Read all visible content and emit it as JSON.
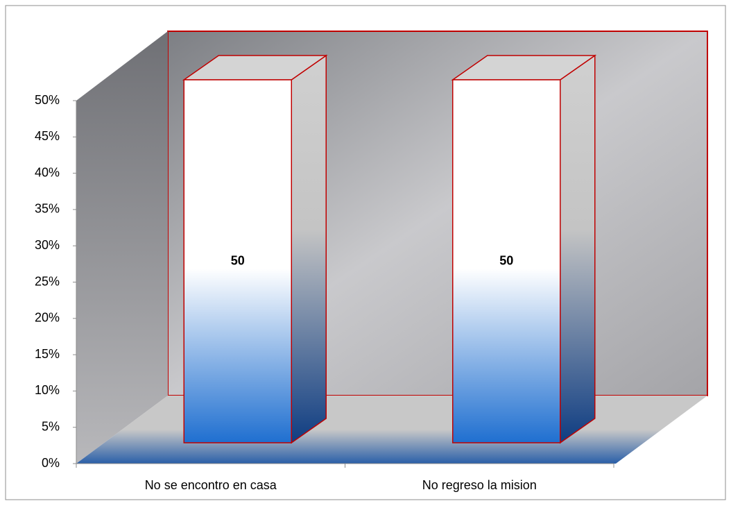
{
  "chart_data": {
    "type": "bar3d",
    "categories": [
      "No se encontro en casa",
      "No regreso la mision"
    ],
    "values": [
      50,
      50
    ],
    "color": "#1f6fd0",
    "ylim": [
      0,
      50
    ],
    "yticks": [
      {
        "value": 0,
        "label": "0%"
      },
      {
        "value": 5,
        "label": "5%"
      },
      {
        "value": 10,
        "label": "10%"
      },
      {
        "value": 15,
        "label": "15%"
      },
      {
        "value": 20,
        "label": "20%"
      },
      {
        "value": 25,
        "label": "25%"
      },
      {
        "value": 30,
        "label": "30%"
      },
      {
        "value": 35,
        "label": "35%"
      },
      {
        "value": 40,
        "label": "40%"
      },
      {
        "value": 45,
        "label": "45%"
      },
      {
        "value": 50,
        "label": "50%"
      }
    ],
    "grid": false
  }
}
